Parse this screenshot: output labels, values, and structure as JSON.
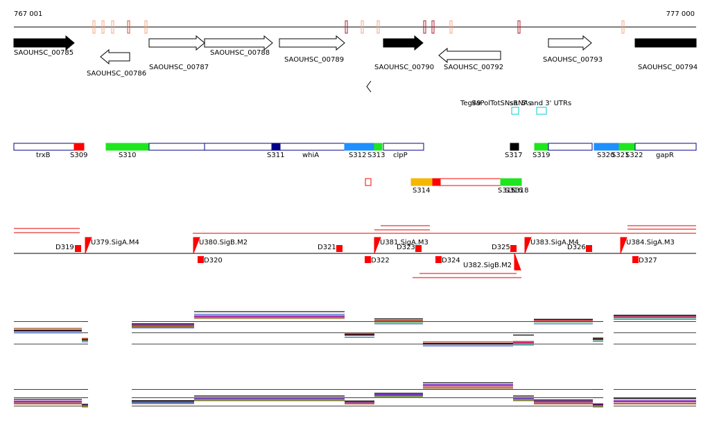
{
  "ruler": {
    "start": "767 001",
    "end": "777 000"
  },
  "genes": [
    "SAOUHSC_00785",
    "SAOUHSC_00786",
    "SAOUHSC_00787",
    "SAOUHSC_00788",
    "SAOUHSC_00789",
    "SAOUHSC_00790",
    "SAOUHSC_00792",
    "SAOUHSC_00793",
    "SAOUHSC_00794"
  ],
  "annotations": [
    "Teg49",
    "SaPolTotSNsa",
    "sRNAs",
    "5' and 3' UTRs"
  ],
  "segments": [
    "trxB",
    "S309",
    "S310",
    "S311",
    "whiA",
    "S312",
    "S313",
    "clpP",
    "S317",
    "S319",
    "S320",
    "S321",
    "S322",
    "gapR",
    "S314",
    "S315",
    "S316",
    "S318"
  ],
  "promoters": [
    "D319",
    "U379.SigA.M4",
    "U380.SigB.M2",
    "D321",
    "U381.SigA.M3",
    "D323",
    "D325",
    "U383.SigA.M4",
    "D326",
    "U384.SigA.M3",
    "D320",
    "D322",
    "D324",
    "U382.SigB.M2",
    "D327"
  ],
  "expression": {
    "ylim": [
      0,
      10
    ],
    "panels": [
      {
        "series": [
          {
            "color": "#e6194b",
            "values": [
              5.2,
              3.1,
              6.1,
              8.3,
              4.2,
              7.1,
              2.2,
              2.4,
              7.2,
              3.1,
              8.1
            ]
          },
          {
            "color": "#3cb44b",
            "values": [
              4.8,
              2.8,
              5.8,
              7.9,
              3.9,
              6.8,
              1.9,
              2.0,
              6.9,
              2.9,
              7.8
            ]
          },
          {
            "color": "#4363d8",
            "values": [
              4.5,
              2.5,
              5.6,
              8.6,
              3.5,
              6.5,
              1.6,
              1.8,
              6.5,
              2.6,
              7.5
            ]
          },
          {
            "color": "#9a6324",
            "values": [
              5.5,
              3.3,
              5.9,
              7.7,
              4.4,
              7.3,
              2.5,
              2.6,
              7.4,
              3.4,
              8.3
            ]
          },
          {
            "color": "#911eb4",
            "values": [
              4.9,
              3.0,
              6.3,
              8.1,
              4.0,
              7.0,
              2.0,
              2.2,
              7.0,
              3.0,
              8.0
            ]
          },
          {
            "color": "#000000",
            "values": [
              5.0,
              2.9,
              6.5,
              9.2,
              4.1,
              7.6,
              2.1,
              4.0,
              7.5,
              3.2,
              8.4
            ]
          }
        ]
      },
      {
        "series": [
          {
            "color": "#e6194b",
            "values": [
              3.1,
              2.1,
              3.2,
              4.1,
              3.0,
              5.1,
              8.0,
              4.1,
              3.1,
              2.1,
              3.2
            ]
          },
          {
            "color": "#3cb44b",
            "values": [
              2.8,
              1.9,
              2.9,
              3.8,
              2.8,
              4.8,
              7.6,
              3.8,
              2.8,
              1.9,
              2.8
            ]
          },
          {
            "color": "#4363d8",
            "values": [
              3.3,
              2.3,
              3.1,
              4.3,
              3.2,
              5.3,
              8.3,
              4.3,
              3.3,
              2.3,
              3.4
            ]
          },
          {
            "color": "#9a6324",
            "values": [
              2.6,
              1.7,
              2.7,
              3.6,
              2.6,
              4.6,
              7.3,
              3.6,
              2.6,
              1.7,
              2.6
            ]
          },
          {
            "color": "#911eb4",
            "values": [
              3.5,
              2.4,
              3.4,
              4.5,
              3.4,
              5.5,
              8.5,
              4.5,
              3.5,
              2.4,
              3.6
            ]
          },
          {
            "color": "#000000",
            "values": [
              4.0,
              2.5,
              3.6,
              5.0,
              3.5,
              5.8,
              9.0,
              5.0,
              3.8,
              2.6,
              4.2
            ]
          }
        ]
      }
    ]
  }
}
